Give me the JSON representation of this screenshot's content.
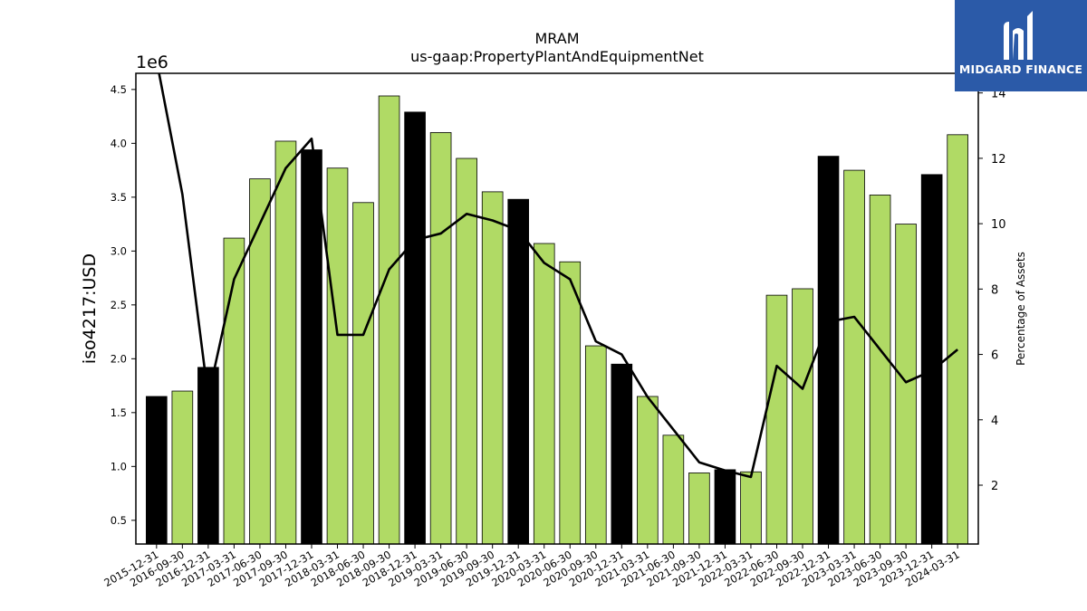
{
  "chart_data": {
    "type": "bar",
    "title": "MRAM",
    "subtitle": "us-gaap:PropertyPlantAndEquipmentNet",
    "ylabel": "iso4217:USD",
    "y_offset_label": "1e6",
    "y2label": "Percentage of Assets",
    "ylim": [
      0.28,
      4.65
    ],
    "y2lim": [
      0.2,
      14.6
    ],
    "yticks": [
      "0.5",
      "1.0",
      "1.5",
      "2.0",
      "2.5",
      "3.0",
      "3.5",
      "4.0",
      "4.5"
    ],
    "y2ticks": [
      "2",
      "4",
      "6",
      "8",
      "10",
      "12",
      "14"
    ],
    "categories": [
      "2015-12-31",
      "2016-09-30",
      "2016-12-31",
      "2017-03-31",
      "2017-06-30",
      "2017-09-30",
      "2017-12-31",
      "2018-03-31",
      "2018-06-30",
      "2018-09-30",
      "2018-12-31",
      "2019-03-31",
      "2019-06-30",
      "2019-09-30",
      "2019-12-31",
      "2020-03-31",
      "2020-06-30",
      "2020-09-30",
      "2020-12-31",
      "2021-03-31",
      "2021-06-30",
      "2021-09-30",
      "2021-12-31",
      "2022-03-31",
      "2022-06-30",
      "2022-09-30",
      "2022-12-31",
      "2023-03-31",
      "2023-06-30",
      "2023-09-30",
      "2023-12-31",
      "2024-03-31"
    ],
    "series": [
      {
        "type": "bar",
        "values": [
          1.65,
          1.7,
          1.92,
          3.12,
          3.67,
          4.02,
          3.94,
          3.77,
          3.45,
          4.44,
          4.29,
          4.1,
          3.86,
          3.55,
          3.48,
          3.07,
          2.9,
          2.12,
          1.95,
          1.65,
          1.29,
          0.94,
          0.97,
          0.95,
          2.59,
          2.65,
          3.88,
          3.75,
          3.52,
          3.25,
          3.71,
          4.08
        ],
        "year_end": [
          true,
          false,
          true,
          false,
          false,
          false,
          true,
          false,
          false,
          false,
          true,
          false,
          false,
          false,
          true,
          false,
          false,
          false,
          true,
          false,
          false,
          false,
          true,
          false,
          false,
          false,
          true,
          false,
          false,
          false,
          true,
          false
        ]
      },
      {
        "type": "line",
        "axis": "y2",
        "values": [
          15.0,
          10.9,
          4.7,
          8.3,
          10.0,
          11.7,
          12.6,
          6.6,
          6.6,
          8.6,
          9.5,
          9.7,
          10.3,
          10.1,
          9.8,
          8.8,
          8.3,
          6.4,
          6.0,
          4.7,
          3.7,
          2.7,
          2.45,
          2.25,
          5.65,
          4.95,
          7.0,
          7.15,
          6.15,
          5.15,
          5.5,
          6.15
        ]
      }
    ],
    "colors": {
      "bar": "#b0da65",
      "bar_year_end": "#000000",
      "line": "#000000"
    },
    "grid": false
  },
  "logo": {
    "text": "MIDGARD FINANCE",
    "icon": "midgard-logo-icon",
    "background": "#2b5aa8"
  }
}
